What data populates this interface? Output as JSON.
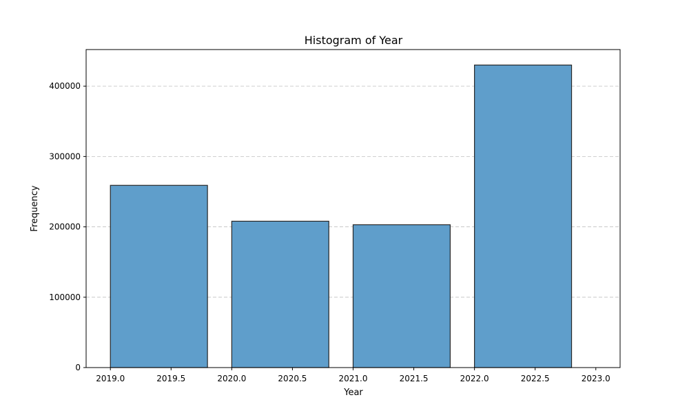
{
  "chart_data": {
    "type": "bar",
    "title": "Histogram of Year",
    "xlabel": "Year",
    "ylabel": "Frequency",
    "bins": [
      {
        "start": 2019.0,
        "end": 2019.8,
        "value": 259000
      },
      {
        "start": 2020.0,
        "end": 2020.8,
        "value": 208000
      },
      {
        "start": 2021.0,
        "end": 2021.8,
        "value": 203000
      },
      {
        "start": 2022.0,
        "end": 2022.8,
        "value": 430000
      }
    ],
    "xlim": [
      2018.8,
      2023.2
    ],
    "ylim": [
      0,
      452000
    ],
    "xticks": [
      "2019.0",
      "2019.5",
      "2020.0",
      "2020.5",
      "2021.0",
      "2021.5",
      "2022.0",
      "2022.5",
      "2023.0"
    ],
    "yticks": [
      "0",
      "100000",
      "200000",
      "300000",
      "400000"
    ],
    "grid": "y-dashed",
    "bar_color": "#5f9ecb",
    "edge_color": "#262626"
  }
}
